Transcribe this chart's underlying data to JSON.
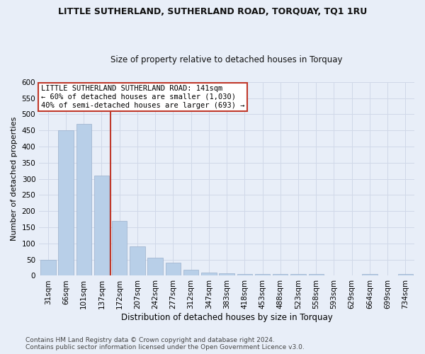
{
  "title": "LITTLE SUTHERLAND, SUTHERLAND ROAD, TORQUAY, TQ1 1RU",
  "subtitle": "Size of property relative to detached houses in Torquay",
  "xlabel": "Distribution of detached houses by size in Torquay",
  "ylabel": "Number of detached properties",
  "categories": [
    "31sqm",
    "66sqm",
    "101sqm",
    "137sqm",
    "172sqm",
    "207sqm",
    "242sqm",
    "277sqm",
    "312sqm",
    "347sqm",
    "383sqm",
    "418sqm",
    "453sqm",
    "488sqm",
    "523sqm",
    "558sqm",
    "593sqm",
    "629sqm",
    "664sqm",
    "699sqm",
    "734sqm"
  ],
  "values": [
    50,
    450,
    470,
    310,
    170,
    90,
    55,
    40,
    18,
    10,
    8,
    6,
    5,
    5,
    5,
    5,
    2,
    1,
    5,
    1,
    5
  ],
  "highlight_index": 3,
  "highlight_color": "#c0392b",
  "bar_color": "#b8cfe8",
  "annotation_text": "LITTLE SUTHERLAND SUTHERLAND ROAD: 141sqm\n← 60% of detached houses are smaller (1,030)\n40% of semi-detached houses are larger (693) →",
  "annotation_box_facecolor": "#ffffff",
  "annotation_border_color": "#c0392b",
  "footer_text": "Contains HM Land Registry data © Crown copyright and database right 2024.\nContains public sector information licensed under the Open Government Licence v3.0.",
  "ylim": [
    0,
    600
  ],
  "yticks": [
    0,
    50,
    100,
    150,
    200,
    250,
    300,
    350,
    400,
    450,
    500,
    550,
    600
  ],
  "grid_color": "#d0d8e8",
  "bg_color": "#e8eef8",
  "title_fontsize": 9,
  "subtitle_fontsize": 8.5,
  "xlabel_fontsize": 8.5,
  "ylabel_fontsize": 8,
  "tick_fontsize": 7.5,
  "annotation_fontsize": 7.5,
  "footer_fontsize": 6.5
}
